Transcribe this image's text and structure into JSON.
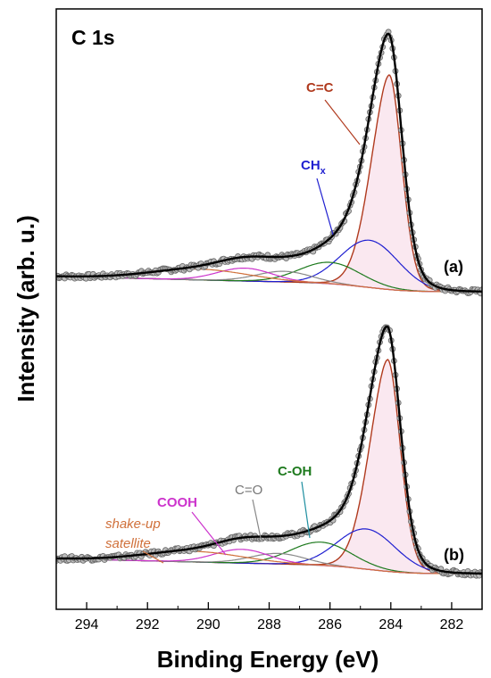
{
  "chart_data": {
    "type": "line",
    "title": "C 1s",
    "xlabel": "Binding Energy (eV)",
    "ylabel": "Intensity (arb. u.)",
    "xlim": [
      295,
      281
    ],
    "x_reversed": true,
    "x_ticks": [
      294,
      292,
      290,
      288,
      286,
      284,
      282
    ],
    "grid": false,
    "legend": "none",
    "colors": {
      "data": "#777777",
      "envelope": "#000000",
      "cc": "#b03a1e",
      "chx": "#1f1fd0",
      "coh": "#1e7a1e",
      "co": "#888888",
      "cooh": "#cc33cc",
      "satellite": "#d0703a",
      "background": "#777777"
    },
    "panels": [
      {
        "label": "(a)",
        "peaks": [
          {
            "component": "C=C",
            "center": 284.05,
            "height": 1.0,
            "sigma": 0.42,
            "gamma": 0.18,
            "tail": 0.25
          },
          {
            "component": "CHx",
            "center": 284.7,
            "height": 0.22,
            "sigma": 0.95
          },
          {
            "component": "C-OH",
            "center": 286.0,
            "height": 0.1,
            "sigma": 1.0
          },
          {
            "component": "C=O",
            "center": 287.5,
            "height": 0.05,
            "sigma": 0.9
          },
          {
            "component": "COOH",
            "center": 288.8,
            "height": 0.06,
            "sigma": 0.9
          },
          {
            "component": "shake-up satellite",
            "center": 290.3,
            "height": 0.05,
            "sigma": 1.6
          }
        ]
      },
      {
        "label": "(b)",
        "peaks": [
          {
            "component": "C=C",
            "center": 284.1,
            "height": 1.0,
            "sigma": 0.42,
            "gamma": 0.18,
            "tail": 0.25
          },
          {
            "component": "CHx",
            "center": 284.8,
            "height": 0.19,
            "sigma": 0.95
          },
          {
            "component": "C-OH",
            "center": 286.3,
            "height": 0.11,
            "sigma": 1.0
          },
          {
            "component": "C=O",
            "center": 287.7,
            "height": 0.05,
            "sigma": 0.9
          },
          {
            "component": "COOH",
            "center": 288.9,
            "height": 0.065,
            "sigma": 0.9
          },
          {
            "component": "shake-up satellite",
            "center": 290.5,
            "height": 0.05,
            "sigma": 1.6
          }
        ]
      }
    ],
    "annotations": [
      {
        "panel": "(a)",
        "text": "C=C"
      },
      {
        "panel": "(a)",
        "text": "CH",
        "subscript": "x"
      },
      {
        "panel": "(b)",
        "text": "COOH"
      },
      {
        "panel": "(b)",
        "text": "C=O"
      },
      {
        "panel": "(b)",
        "text": "C-OH"
      },
      {
        "panel": "(b)",
        "text": "shake-up",
        "text2": "satellite"
      }
    ]
  }
}
